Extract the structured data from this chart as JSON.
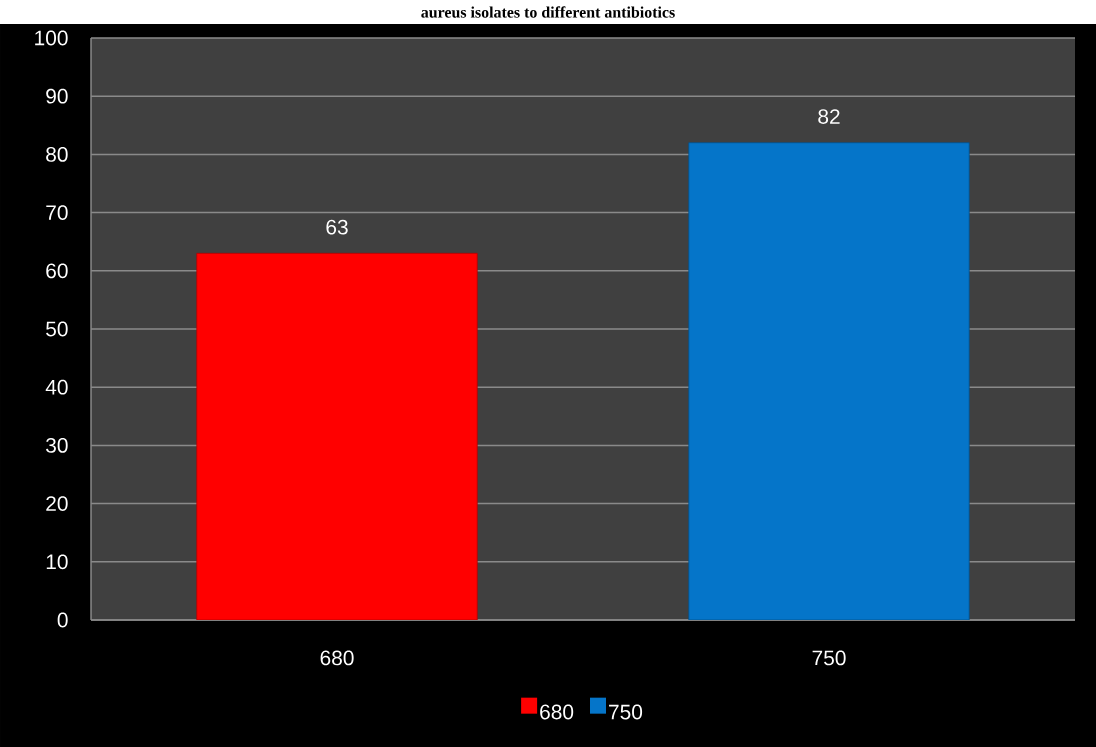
{
  "chart_data": {
    "type": "bar",
    "title": "aureus isolates to different antibiotics",
    "categories": [
      "680",
      "750"
    ],
    "series": [
      {
        "name": "680",
        "color": "#ff0000",
        "values": [
          63,
          null
        ]
      },
      {
        "name": "750",
        "color": "#0575c9",
        "values": [
          null,
          82
        ]
      }
    ],
    "ylim": [
      0,
      100
    ],
    "yticks": [
      0,
      10,
      20,
      30,
      40,
      50,
      60,
      70,
      80,
      90,
      100
    ],
    "grid": "y",
    "legend": "bottom",
    "data_labels": true
  }
}
